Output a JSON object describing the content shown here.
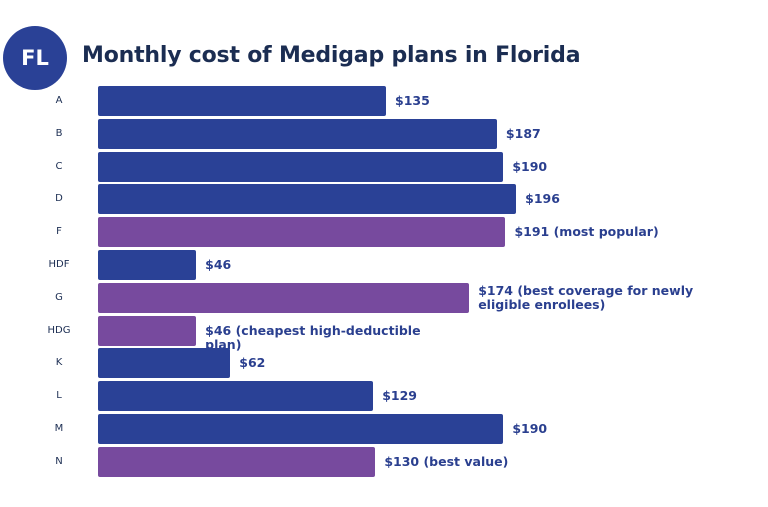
{
  "badge": "FL",
  "chart_data": {
    "type": "bar",
    "orientation": "horizontal",
    "title": "Monthly cost of Medigap plans in Florida",
    "categories": [
      "A",
      "B",
      "C",
      "D",
      "F",
      "HDF",
      "G",
      "HDG",
      "K",
      "L",
      "M",
      "N"
    ],
    "values": [
      135,
      187,
      190,
      196,
      191,
      46,
      174,
      46,
      62,
      129,
      190,
      130
    ],
    "labels": [
      "$135",
      "$187",
      "$190",
      "$196",
      "$191 (most popular)",
      "$46",
      "$174 (best coverage for newly eligible enrollees)",
      "$46 (cheapest high-deductible plan)",
      "$62",
      "$129",
      "$190",
      "$130 (best value)"
    ],
    "highlighted": [
      false,
      false,
      false,
      false,
      true,
      false,
      true,
      true,
      false,
      false,
      false,
      true
    ],
    "colors": {
      "default": "#2a4196",
      "highlight": "#774a9e"
    },
    "xlim": [
      0,
      320
    ],
    "grid": false,
    "legend": "none"
  }
}
